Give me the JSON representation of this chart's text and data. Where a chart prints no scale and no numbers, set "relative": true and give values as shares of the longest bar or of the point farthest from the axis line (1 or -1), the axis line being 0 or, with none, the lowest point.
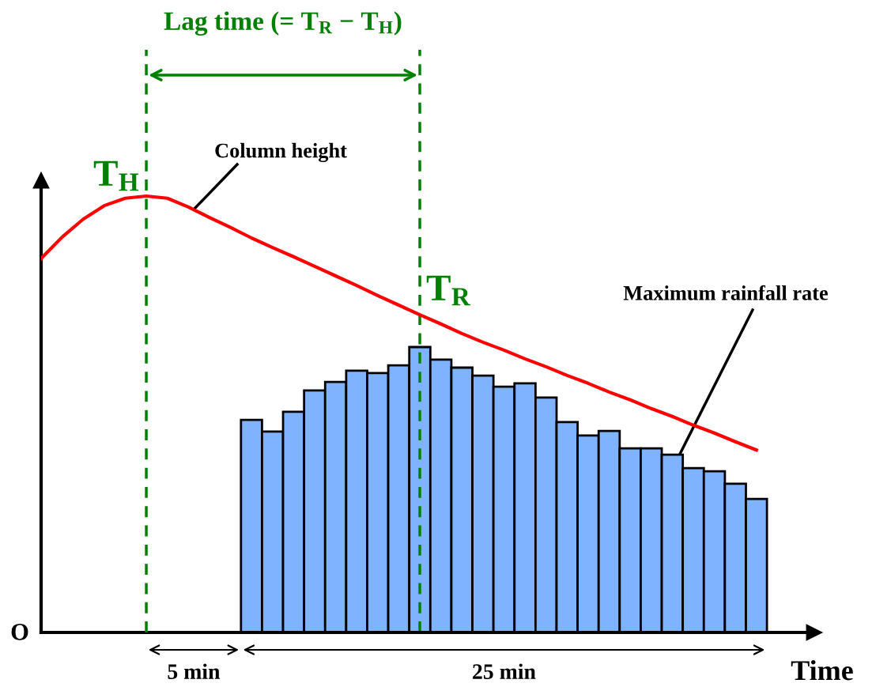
{
  "chart_data": [
    {
      "type": "line",
      "relative": true,
      "xlabel": "Time",
      "categories": [
        null,
        null,
        null,
        null,
        null,
        null,
        null,
        null,
        null,
        null,
        null,
        null,
        null,
        null,
        null,
        null,
        null,
        null,
        null,
        null,
        null,
        null,
        null,
        null,
        null,
        null,
        null,
        null,
        null,
        null,
        null,
        null,
        null,
        null,
        null
      ],
      "series": [
        {
          "name": "Column height",
          "color": "#ff0000",
          "values": [
            0.857,
            0.906,
            0.947,
            0.978,
            0.995,
            1.0,
            0.995,
            0.975,
            0.951,
            0.928,
            0.904,
            0.882,
            0.861,
            0.839,
            0.817,
            0.795,
            0.772,
            0.75,
            0.728,
            0.707,
            0.685,
            0.665,
            0.647,
            0.627,
            0.609,
            0.589,
            0.571,
            0.551,
            0.533,
            0.513,
            0.495,
            0.475,
            0.457,
            0.437,
            0.418
          ]
        }
      ],
      "ref_lines": [
        {
          "axis": "x",
          "label": "T$_{H}$",
          "color": "#008000",
          "line_style": "dashed"
        }
      ],
      "annotations": [
        "Lag time (= T$_{R}$ − T$_{H}$)",
        "5 min",
        "25 min",
        "O"
      ]
    },
    {
      "type": "bar",
      "relative": true,
      "categories": [
        null,
        null,
        null,
        null,
        null,
        null,
        null,
        null,
        null,
        null,
        null,
        null,
        null,
        null,
        null,
        null,
        null,
        null,
        null,
        null,
        null,
        null,
        null,
        null,
        null
      ],
      "series": [
        {
          "name": "Maximum rainfall rate",
          "color": "#80b3ff",
          "values": [
            0.745,
            0.704,
            0.773,
            0.848,
            0.878,
            0.917,
            0.909,
            0.936,
            1.0,
            0.956,
            0.928,
            0.9,
            0.861,
            0.873,
            0.823,
            0.737,
            0.69,
            0.706,
            0.645,
            0.645,
            0.623,
            0.576,
            0.565,
            0.521,
            0.468
          ]
        }
      ],
      "ref_lines": [
        {
          "axis": "x",
          "label": "T$_{R}$",
          "color": "#008000",
          "line_style": "dashed"
        }
      ]
    }
  ]
}
